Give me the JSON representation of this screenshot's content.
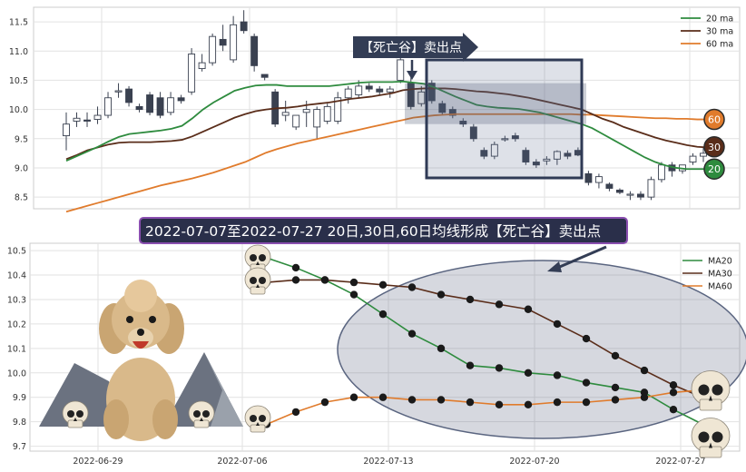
{
  "chart_data": [
    {
      "type": "candlestick",
      "y_ticks": [
        "11.5",
        "11.0",
        "10.5",
        "10.0",
        "9.5",
        "9.0",
        "8.5"
      ],
      "ylim": [
        8.3,
        11.75
      ],
      "legend": [
        "20 ma",
        "30 ma",
        "60 ma"
      ],
      "legend_position": "top-right",
      "callout": "【死亡谷】卖出点",
      "end_markers": [
        "60",
        "30",
        "20"
      ],
      "colors": {
        "ma20": "#2e8b3e",
        "ma30": "#5a2d1a",
        "ma60": "#e07b2c",
        "candle_down": "#3a4150",
        "rect": "#2f3a55"
      },
      "candles": [
        [
          9.55,
          9.95,
          9.3,
          9.75
        ],
        [
          9.8,
          9.95,
          9.7,
          9.85
        ],
        [
          9.82,
          9.95,
          9.7,
          9.8
        ],
        [
          9.83,
          10.05,
          9.75,
          9.9
        ],
        [
          9.9,
          10.3,
          9.85,
          10.2
        ],
        [
          10.3,
          10.45,
          10.2,
          10.32
        ],
        [
          10.35,
          10.4,
          10.05,
          10.12
        ],
        [
          10.05,
          10.1,
          9.95,
          10.0
        ],
        [
          10.25,
          10.3,
          9.9,
          9.95
        ],
        [
          10.2,
          10.3,
          9.85,
          9.9
        ],
        [
          9.95,
          10.3,
          9.9,
          10.2
        ],
        [
          10.2,
          10.25,
          10.1,
          10.15
        ],
        [
          10.3,
          11.05,
          10.25,
          10.95
        ],
        [
          10.7,
          10.95,
          10.65,
          10.8
        ],
        [
          10.8,
          11.3,
          10.75,
          11.25
        ],
        [
          11.2,
          11.45,
          11.0,
          11.1
        ],
        [
          10.85,
          11.6,
          10.8,
          11.45
        ],
        [
          11.5,
          11.7,
          11.3,
          11.35
        ],
        [
          11.25,
          11.3,
          10.65,
          10.75
        ],
        [
          10.6,
          10.6,
          10.5,
          10.55
        ],
        [
          10.3,
          10.35,
          9.7,
          9.75
        ],
        [
          9.9,
          10.15,
          9.8,
          9.95
        ],
        [
          9.7,
          9.9,
          9.65,
          9.9
        ],
        [
          9.95,
          10.15,
          9.7,
          10.0
        ],
        [
          9.7,
          10.05,
          9.5,
          10.0
        ],
        [
          9.8,
          10.1,
          9.75,
          10.05
        ],
        [
          9.8,
          10.3,
          9.75,
          10.2
        ],
        [
          10.2,
          10.4,
          10.1,
          10.35
        ],
        [
          10.25,
          10.5,
          10.2,
          10.4
        ],
        [
          10.4,
          10.45,
          10.3,
          10.35
        ],
        [
          10.35,
          10.4,
          10.25,
          10.3
        ],
        [
          10.3,
          10.4,
          10.2,
          10.35
        ],
        [
          10.5,
          10.9,
          10.45,
          10.85
        ],
        [
          10.45,
          10.55,
          10.0,
          10.05
        ],
        [
          10.1,
          10.4,
          10.05,
          10.3
        ],
        [
          10.45,
          10.5,
          10.1,
          10.15
        ],
        [
          10.1,
          10.15,
          9.9,
          9.95
        ],
        [
          10.0,
          10.05,
          9.85,
          9.9
        ],
        [
          9.8,
          9.85,
          9.7,
          9.75
        ],
        [
          9.7,
          9.75,
          9.45,
          9.5
        ],
        [
          9.3,
          9.35,
          9.15,
          9.2
        ],
        [
          9.2,
          9.45,
          9.15,
          9.4
        ],
        [
          9.5,
          9.55,
          9.45,
          9.5
        ],
        [
          9.55,
          9.6,
          9.45,
          9.5
        ],
        [
          9.3,
          9.35,
          9.05,
          9.1
        ],
        [
          9.1,
          9.15,
          9.0,
          9.05
        ],
        [
          9.12,
          9.2,
          9.05,
          9.15
        ],
        [
          9.15,
          9.3,
          9.05,
          9.28
        ],
        [
          9.25,
          9.3,
          9.15,
          9.2
        ],
        [
          9.3,
          9.35,
          9.2,
          9.22
        ],
        [
          8.9,
          8.95,
          8.7,
          8.75
        ],
        [
          8.75,
          8.9,
          8.65,
          8.85
        ],
        [
          8.72,
          8.75,
          8.6,
          8.65
        ],
        [
          8.62,
          8.65,
          8.55,
          8.58
        ],
        [
          8.55,
          8.6,
          8.45,
          8.55
        ],
        [
          8.55,
          8.6,
          8.45,
          8.5
        ],
        [
          8.5,
          8.85,
          8.45,
          8.8
        ],
        [
          8.8,
          9.1,
          8.75,
          9.05
        ],
        [
          9.05,
          9.1,
          8.85,
          8.95
        ],
        [
          8.95,
          9.05,
          8.9,
          9.05
        ],
        [
          9.1,
          9.25,
          9.05,
          9.2
        ],
        [
          9.2,
          9.35,
          9.1,
          9.25
        ]
      ],
      "ma20": [
        9.12,
        9.2,
        9.28,
        9.36,
        9.45,
        9.53,
        9.58,
        9.6,
        9.62,
        9.64,
        9.67,
        9.72,
        9.85,
        10.0,
        10.12,
        10.22,
        10.32,
        10.37,
        10.41,
        10.42,
        10.42,
        10.4,
        10.4,
        10.4,
        10.4,
        10.4,
        10.42,
        10.44,
        10.46,
        10.47,
        10.47,
        10.47,
        10.48,
        10.46,
        10.44,
        10.38,
        10.3,
        10.22,
        10.15,
        10.08,
        10.05,
        10.03,
        10.02,
        10.01,
        9.98,
        9.95,
        9.9,
        9.85,
        9.8,
        9.75,
        9.68,
        9.58,
        9.48,
        9.38,
        9.28,
        9.18,
        9.1,
        9.04,
        9.0,
        8.98,
        8.98,
        8.98
      ],
      "ma30": [
        9.15,
        9.22,
        9.3,
        9.35,
        9.4,
        9.43,
        9.44,
        9.44,
        9.44,
        9.45,
        9.46,
        9.48,
        9.54,
        9.62,
        9.7,
        9.78,
        9.86,
        9.92,
        9.97,
        10.0,
        10.02,
        10.03,
        10.05,
        10.08,
        10.1,
        10.12,
        10.15,
        10.18,
        10.2,
        10.22,
        10.25,
        10.28,
        10.33,
        10.35,
        10.36,
        10.36,
        10.36,
        10.35,
        10.33,
        10.31,
        10.3,
        10.28,
        10.26,
        10.23,
        10.2,
        10.16,
        10.12,
        10.08,
        10.04,
        10.0,
        9.92,
        9.84,
        9.78,
        9.7,
        9.64,
        9.58,
        9.52,
        9.47,
        9.43,
        9.39,
        9.36,
        9.35
      ],
      "ma60": [
        8.25,
        8.3,
        8.35,
        8.4,
        8.45,
        8.5,
        8.55,
        8.6,
        8.65,
        8.7,
        8.74,
        8.78,
        8.82,
        8.87,
        8.92,
        8.98,
        9.04,
        9.1,
        9.18,
        9.26,
        9.32,
        9.37,
        9.42,
        9.46,
        9.5,
        9.54,
        9.58,
        9.62,
        9.66,
        9.7,
        9.74,
        9.78,
        9.82,
        9.86,
        9.88,
        9.9,
        9.91,
        9.92,
        9.92,
        9.92,
        9.92,
        9.92,
        9.92,
        9.92,
        9.92,
        9.92,
        9.92,
        9.92,
        9.92,
        9.91,
        9.91,
        9.9,
        9.89,
        9.88,
        9.87,
        9.86,
        9.85,
        9.85,
        9.84,
        9.84,
        9.83,
        9.83
      ]
    },
    {
      "type": "line",
      "title": "2022-07-07至2022-07-27 20日,30日,60日均线形成【死亡谷】卖出点",
      "x_ticks": [
        "2022-06-29",
        "2022-07-06",
        "2022-07-13",
        "2022-07-20",
        "2022-07-27"
      ],
      "y_ticks": [
        "10.5",
        "10.4",
        "10.3",
        "10.2",
        "10.1",
        "10.0",
        "9.9",
        "9.8",
        "9.7"
      ],
      "ylim": [
        9.68,
        10.53
      ],
      "legend_position": "top-right",
      "series": [
        {
          "name": "MA20",
          "color": "#2e8b3e",
          "values": [
            10.47,
            10.43,
            10.38,
            10.32,
            10.24,
            10.16,
            10.1,
            10.03,
            10.02,
            10.0,
            9.99,
            9.96,
            9.94,
            9.92,
            9.85,
            9.79
          ]
        },
        {
          "name": "MA30",
          "color": "#5a2d1a",
          "values": [
            10.37,
            10.38,
            10.38,
            10.37,
            10.36,
            10.35,
            10.32,
            10.3,
            10.28,
            10.26,
            10.2,
            10.14,
            10.07,
            10.01,
            9.95,
            9.9
          ]
        },
        {
          "name": "MA60",
          "color": "#e07b2c",
          "values": [
            9.79,
            9.84,
            9.88,
            9.9,
            9.9,
            9.89,
            9.89,
            9.88,
            9.87,
            9.87,
            9.88,
            9.88,
            9.89,
            9.9,
            9.92,
            9.93
          ]
        }
      ]
    }
  ]
}
